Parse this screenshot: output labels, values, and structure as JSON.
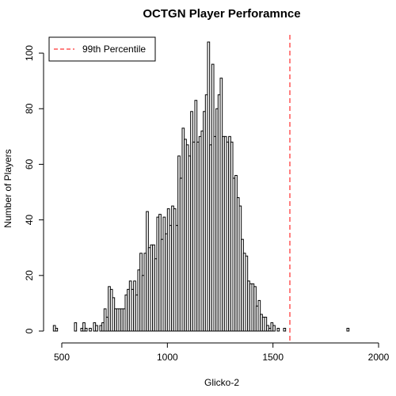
{
  "chart_data": {
    "type": "bar",
    "title": "OCTGN Player Perforamnce",
    "xlabel": "Glicko-2",
    "ylabel": "Number of Players",
    "bin_width": 10,
    "bins": [
      {
        "x0": 460,
        "value": 2
      },
      {
        "x0": 470,
        "value": 1
      },
      {
        "x0": 480,
        "value": 0
      },
      {
        "x0": 490,
        "value": 0
      },
      {
        "x0": 500,
        "value": 0
      },
      {
        "x0": 510,
        "value": 0
      },
      {
        "x0": 520,
        "value": 0
      },
      {
        "x0": 530,
        "value": 0
      },
      {
        "x0": 540,
        "value": 0
      },
      {
        "x0": 550,
        "value": 0
      },
      {
        "x0": 560,
        "value": 3
      },
      {
        "x0": 570,
        "value": 0
      },
      {
        "x0": 580,
        "value": 0
      },
      {
        "x0": 590,
        "value": 1
      },
      {
        "x0": 600,
        "value": 3
      },
      {
        "x0": 610,
        "value": 1
      },
      {
        "x0": 620,
        "value": 0
      },
      {
        "x0": 630,
        "value": 1
      },
      {
        "x0": 640,
        "value": 0
      },
      {
        "x0": 650,
        "value": 3
      },
      {
        "x0": 660,
        "value": 2
      },
      {
        "x0": 670,
        "value": 0
      },
      {
        "x0": 680,
        "value": 2
      },
      {
        "x0": 690,
        "value": 3
      },
      {
        "x0": 700,
        "value": 8
      },
      {
        "x0": 710,
        "value": 5
      },
      {
        "x0": 720,
        "value": 16
      },
      {
        "x0": 730,
        "value": 15
      },
      {
        "x0": 740,
        "value": 12
      },
      {
        "x0": 750,
        "value": 8
      },
      {
        "x0": 760,
        "value": 8
      },
      {
        "x0": 770,
        "value": 8
      },
      {
        "x0": 780,
        "value": 8
      },
      {
        "x0": 790,
        "value": 8
      },
      {
        "x0": 800,
        "value": 13
      },
      {
        "x0": 810,
        "value": 15
      },
      {
        "x0": 820,
        "value": 18
      },
      {
        "x0": 830,
        "value": 15
      },
      {
        "x0": 840,
        "value": 18
      },
      {
        "x0": 850,
        "value": 13
      },
      {
        "x0": 860,
        "value": 22
      },
      {
        "x0": 870,
        "value": 28
      },
      {
        "x0": 880,
        "value": 20
      },
      {
        "x0": 890,
        "value": 28
      },
      {
        "x0": 900,
        "value": 43
      },
      {
        "x0": 910,
        "value": 30
      },
      {
        "x0": 920,
        "value": 31
      },
      {
        "x0": 930,
        "value": 31
      },
      {
        "x0": 940,
        "value": 26
      },
      {
        "x0": 950,
        "value": 41
      },
      {
        "x0": 960,
        "value": 42
      },
      {
        "x0": 970,
        "value": 33
      },
      {
        "x0": 980,
        "value": 41
      },
      {
        "x0": 990,
        "value": 35
      },
      {
        "x0": 1000,
        "value": 44
      },
      {
        "x0": 1010,
        "value": 38
      },
      {
        "x0": 1020,
        "value": 45
      },
      {
        "x0": 1030,
        "value": 44
      },
      {
        "x0": 1040,
        "value": 38
      },
      {
        "x0": 1050,
        "value": 63
      },
      {
        "x0": 1060,
        "value": 55
      },
      {
        "x0": 1070,
        "value": 73
      },
      {
        "x0": 1080,
        "value": 69
      },
      {
        "x0": 1090,
        "value": 67
      },
      {
        "x0": 1100,
        "value": 63
      },
      {
        "x0": 1110,
        "value": 79
      },
      {
        "x0": 1120,
        "value": 68
      },
      {
        "x0": 1130,
        "value": 83
      },
      {
        "x0": 1140,
        "value": 68
      },
      {
        "x0": 1150,
        "value": 70
      },
      {
        "x0": 1160,
        "value": 72
      },
      {
        "x0": 1170,
        "value": 79
      },
      {
        "x0": 1180,
        "value": 85
      },
      {
        "x0": 1190,
        "value": 104
      },
      {
        "x0": 1200,
        "value": 67
      },
      {
        "x0": 1210,
        "value": 96
      },
      {
        "x0": 1220,
        "value": 70
      },
      {
        "x0": 1230,
        "value": 80
      },
      {
        "x0": 1240,
        "value": 85
      },
      {
        "x0": 1250,
        "value": 91
      },
      {
        "x0": 1260,
        "value": 70
      },
      {
        "x0": 1270,
        "value": 70
      },
      {
        "x0": 1280,
        "value": 68
      },
      {
        "x0": 1290,
        "value": 70
      },
      {
        "x0": 1300,
        "value": 68
      },
      {
        "x0": 1310,
        "value": 55
      },
      {
        "x0": 1320,
        "value": 56
      },
      {
        "x0": 1330,
        "value": 48
      },
      {
        "x0": 1340,
        "value": 45
      },
      {
        "x0": 1350,
        "value": 33
      },
      {
        "x0": 1360,
        "value": 28
      },
      {
        "x0": 1370,
        "value": 27
      },
      {
        "x0": 1380,
        "value": 18
      },
      {
        "x0": 1390,
        "value": 17
      },
      {
        "x0": 1400,
        "value": 17
      },
      {
        "x0": 1410,
        "value": 16
      },
      {
        "x0": 1420,
        "value": 9
      },
      {
        "x0": 1430,
        "value": 11
      },
      {
        "x0": 1440,
        "value": 6
      },
      {
        "x0": 1450,
        "value": 5
      },
      {
        "x0": 1460,
        "value": 5
      },
      {
        "x0": 1470,
        "value": 2
      },
      {
        "x0": 1480,
        "value": 1
      },
      {
        "x0": 1490,
        "value": 3
      },
      {
        "x0": 1500,
        "value": 2
      },
      {
        "x0": 1510,
        "value": 0
      },
      {
        "x0": 1520,
        "value": 1
      },
      {
        "x0": 1530,
        "value": 0
      },
      {
        "x0": 1540,
        "value": 0
      },
      {
        "x0": 1550,
        "value": 1
      },
      {
        "x0": 1560,
        "value": 0
      },
      {
        "x0": 1570,
        "value": 0
      },
      {
        "x0": 1580,
        "value": 0
      },
      {
        "x0": 1590,
        "value": 0
      },
      {
        "x0": 1600,
        "value": 0
      },
      {
        "x0": 1610,
        "value": 0
      },
      {
        "x0": 1620,
        "value": 0
      },
      {
        "x0": 1630,
        "value": 0
      },
      {
        "x0": 1640,
        "value": 0
      },
      {
        "x0": 1650,
        "value": 0
      },
      {
        "x0": 1660,
        "value": 0
      },
      {
        "x0": 1670,
        "value": 0
      },
      {
        "x0": 1680,
        "value": 0
      },
      {
        "x0": 1690,
        "value": 0
      },
      {
        "x0": 1700,
        "value": 0
      },
      {
        "x0": 1710,
        "value": 0
      },
      {
        "x0": 1720,
        "value": 0
      },
      {
        "x0": 1730,
        "value": 0
      },
      {
        "x0": 1740,
        "value": 0
      },
      {
        "x0": 1750,
        "value": 0
      },
      {
        "x0": 1760,
        "value": 0
      },
      {
        "x0": 1770,
        "value": 0
      },
      {
        "x0": 1780,
        "value": 0
      },
      {
        "x0": 1790,
        "value": 0
      },
      {
        "x0": 1800,
        "value": 0
      },
      {
        "x0": 1810,
        "value": 0
      },
      {
        "x0": 1820,
        "value": 0
      },
      {
        "x0": 1830,
        "value": 0
      },
      {
        "x0": 1840,
        "value": 0
      },
      {
        "x0": 1850,
        "value": 1
      }
    ],
    "reference_line": {
      "name": "99th Percentile",
      "x": 1580,
      "color": "#ff0000",
      "style": "dashed"
    },
    "xlim": [
      440,
      2000
    ],
    "ylim": [
      0,
      108
    ],
    "xticks": [
      500,
      1000,
      1500,
      2000
    ],
    "xtick_labels": [
      "500",
      "1000",
      "1500",
      "2000"
    ],
    "yticks": [
      0,
      20,
      40,
      60,
      80,
      100
    ],
    "ytick_labels": [
      "0",
      "20",
      "40",
      "60",
      "80",
      "100"
    ],
    "legend": {
      "position": "top-left",
      "entries": [
        "99th Percentile"
      ]
    },
    "grid": false,
    "bar_fill": "#ffffff",
    "bar_stroke": "#000000"
  }
}
